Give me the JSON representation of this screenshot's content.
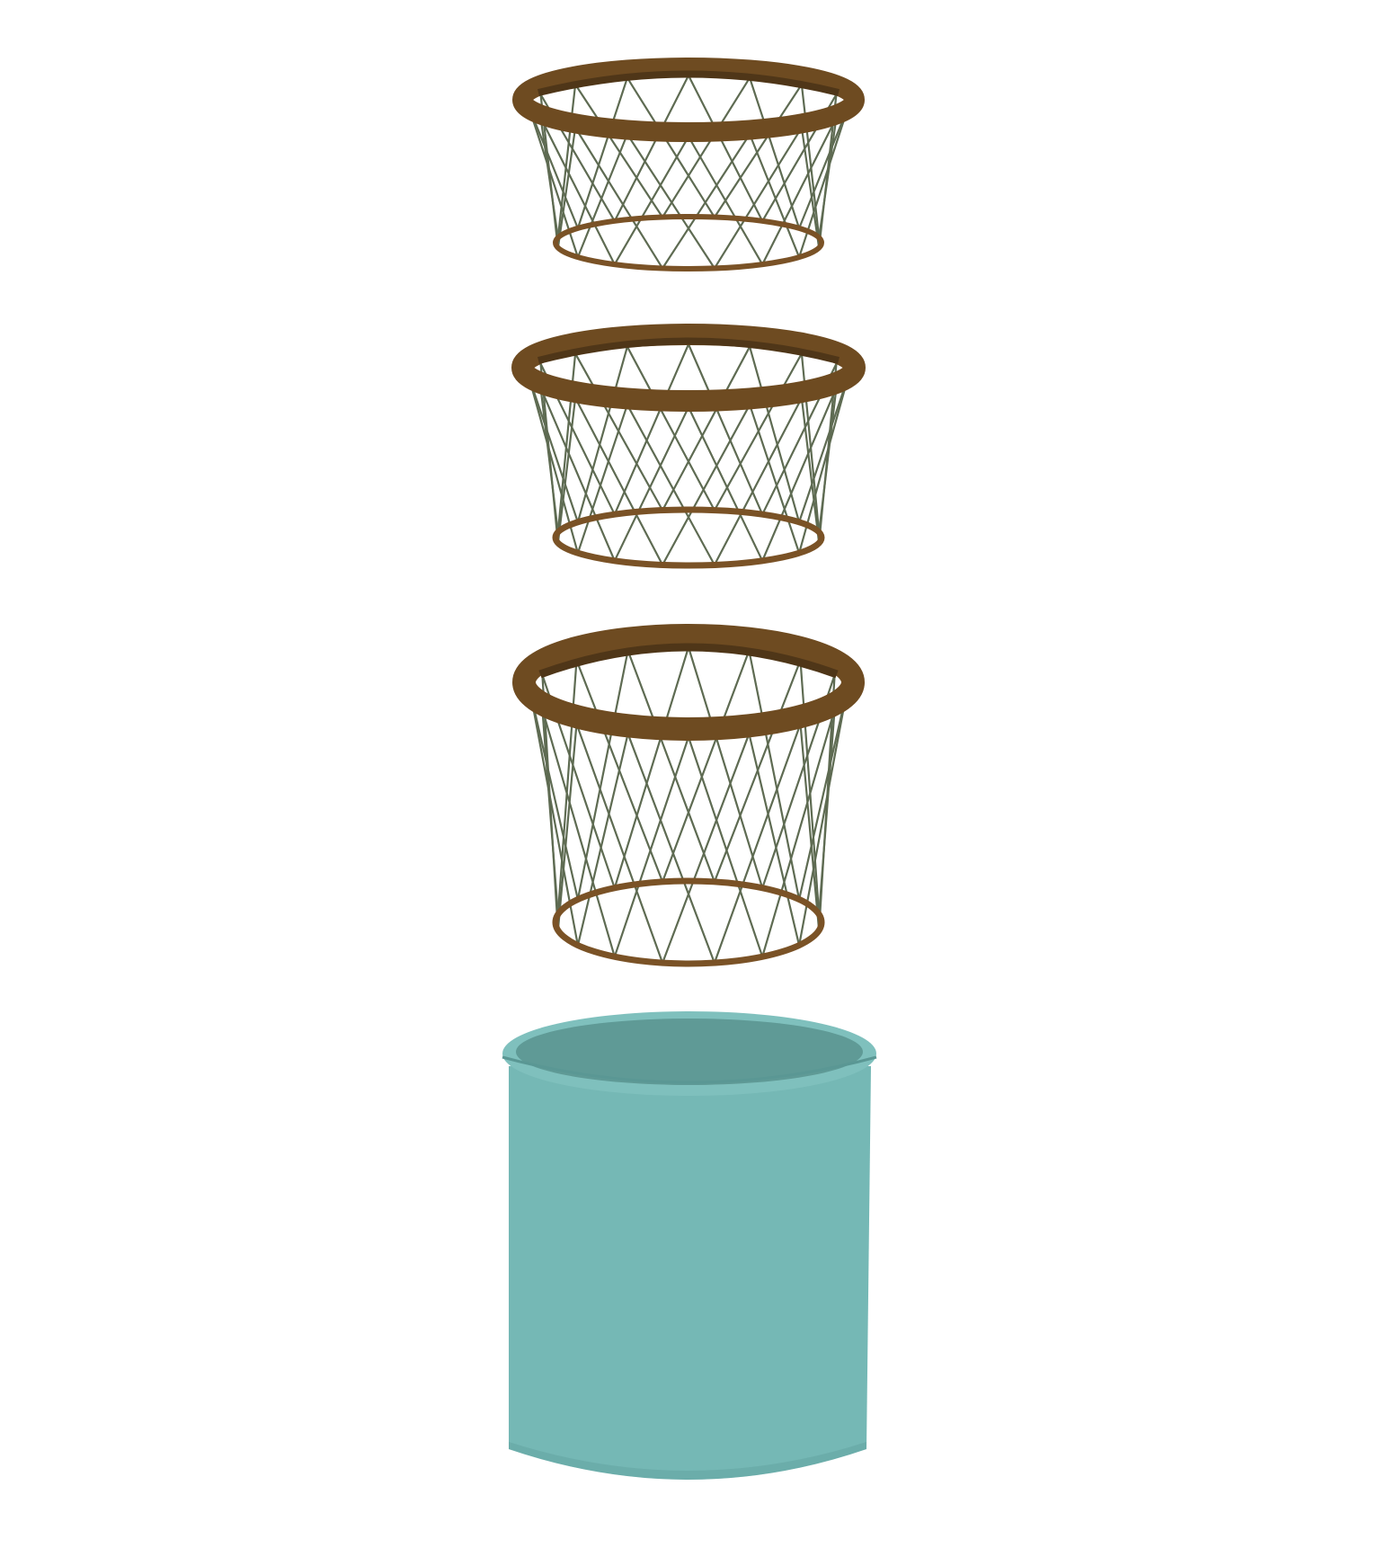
{
  "colors": {
    "background": "#ffffff",
    "rim": "#6e4b21",
    "rim_inner": "#4f3618",
    "base_ring": "#7a5226",
    "mesh": "#5e6b52",
    "container_body": "#75b8b5",
    "container_rim": "#7fc0bd",
    "container_interior": "#5f9a96",
    "container_edge": "#5a9794"
  },
  "baskets": [
    {
      "name": "basket-1"
    },
    {
      "name": "basket-2"
    },
    {
      "name": "basket-3"
    }
  ],
  "container": {
    "name": "teal-container"
  }
}
